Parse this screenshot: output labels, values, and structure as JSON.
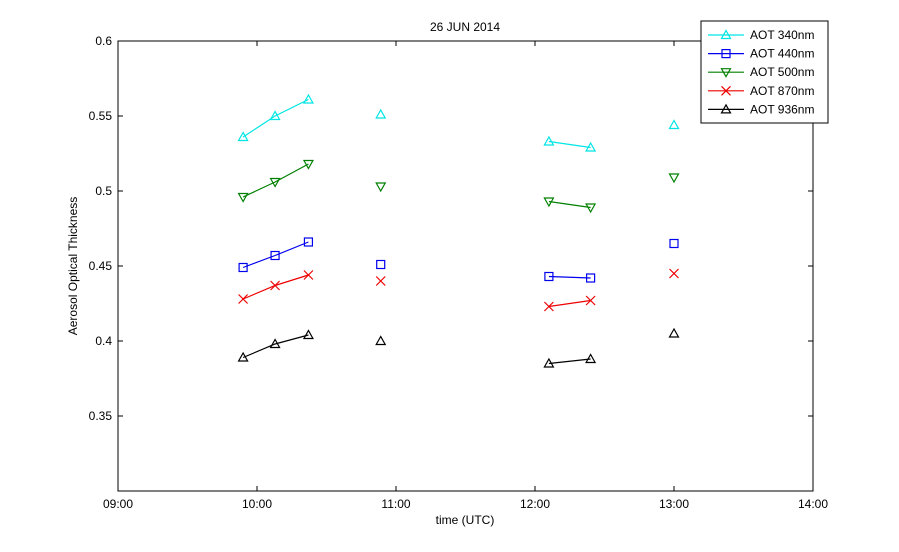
{
  "chart_data": {
    "type": "line",
    "title": "26 JUN 2014",
    "xlabel": "time  (UTC)",
    "ylabel": "Aerosol Optical Thickness",
    "xlim": [
      9.0,
      14.0
    ],
    "ylim": [
      0.3,
      0.6
    ],
    "xticks": [
      9,
      10,
      11,
      12,
      13,
      14
    ],
    "xtick_labels": [
      "09:00",
      "10:00",
      "11:00",
      "12:00",
      "13:00",
      "14:00"
    ],
    "yticks": [
      0.35,
      0.4,
      0.45,
      0.5,
      0.55,
      0.6
    ],
    "ytick_labels": [
      "0.35",
      "0.4",
      "0.45",
      "0.5",
      "0.55",
      "0.6"
    ],
    "grid": false,
    "legend_position": "top-right",
    "series": [
      {
        "name": "AOT 340nm",
        "color": "#00e5e5",
        "marker": "triangle-up",
        "points": [
          [
            9.9,
            0.536
          ],
          [
            10.13,
            0.55
          ],
          [
            10.37,
            0.561
          ],
          null,
          [
            10.89,
            0.551
          ],
          null,
          [
            12.1,
            0.533
          ],
          [
            12.4,
            0.529
          ],
          null,
          [
            13.0,
            0.544
          ]
        ]
      },
      {
        "name": "AOT 440nm",
        "color": "#0000ee",
        "marker": "square",
        "points": [
          [
            9.9,
            0.449
          ],
          [
            10.13,
            0.457
          ],
          [
            10.37,
            0.466
          ],
          null,
          [
            10.89,
            0.451
          ],
          null,
          [
            12.1,
            0.443
          ],
          [
            12.4,
            0.442
          ],
          null,
          [
            13.0,
            0.465
          ]
        ]
      },
      {
        "name": "AOT 500nm",
        "color": "#008000",
        "marker": "triangle-down",
        "points": [
          [
            9.9,
            0.496
          ],
          [
            10.13,
            0.506
          ],
          [
            10.37,
            0.518
          ],
          null,
          [
            10.89,
            0.503
          ],
          null,
          [
            12.1,
            0.493
          ],
          [
            12.4,
            0.489
          ],
          null,
          [
            13.0,
            0.509
          ]
        ]
      },
      {
        "name": "AOT 870nm",
        "color": "#ee0000",
        "marker": "x",
        "points": [
          [
            9.9,
            0.428
          ],
          [
            10.13,
            0.437
          ],
          [
            10.37,
            0.444
          ],
          null,
          [
            10.89,
            0.44
          ],
          null,
          [
            12.1,
            0.423
          ],
          [
            12.4,
            0.427
          ],
          null,
          [
            13.0,
            0.445
          ]
        ]
      },
      {
        "name": "AOT 936nm",
        "color": "#000000",
        "marker": "triangle-up",
        "points": [
          [
            9.9,
            0.389
          ],
          [
            10.13,
            0.398
          ],
          [
            10.37,
            0.404
          ],
          null,
          [
            10.89,
            0.4
          ],
          null,
          [
            12.1,
            0.385
          ],
          [
            12.4,
            0.388
          ],
          null,
          [
            13.0,
            0.405
          ]
        ]
      }
    ]
  }
}
